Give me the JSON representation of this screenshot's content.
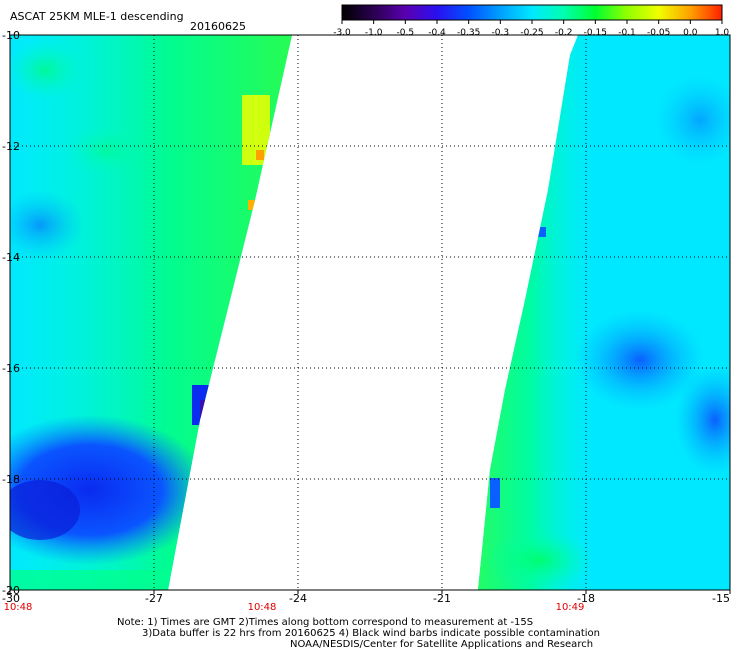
{
  "title": "ASCAT 25KM MLE-1 descending",
  "date": "20160625",
  "colorbar": {
    "labels": [
      "-3.0",
      "-1.0",
      "-0.5",
      "-0.4",
      "-0.35",
      "-0.3",
      "-0.25",
      "-0.2",
      "-0.15",
      "-0.1",
      "-0.05",
      "0.0",
      "1.0"
    ],
    "colors": [
      "#000000",
      "#2a0050",
      "#5a00b0",
      "#2a10f0",
      "#0050ff",
      "#00a0ff",
      "#00e8ff",
      "#00ffb0",
      "#00ff30",
      "#90ff00",
      "#f0ff00",
      "#ffa000",
      "#ff2000"
    ]
  },
  "map": {
    "lon_labels": [
      "-30",
      "-27",
      "-24",
      "-21",
      "-18",
      "-15"
    ],
    "lat_labels": [
      "-10",
      "-12",
      "-14",
      "-16",
      "-18",
      "-20"
    ],
    "time_labels": [
      "10:48",
      "10:48",
      "10:49"
    ],
    "time_color": "#e00000"
  },
  "notes": [
    "Note: 1) Times are GMT 2)Times along bottom correspond to measurement at -15S",
    "3)Data buffer is 22 hrs from 20160625 4) Black wind barbs indicate possible contamination",
    "NOAA/NESDIS/Center for Satellite Applications and Research"
  ]
}
